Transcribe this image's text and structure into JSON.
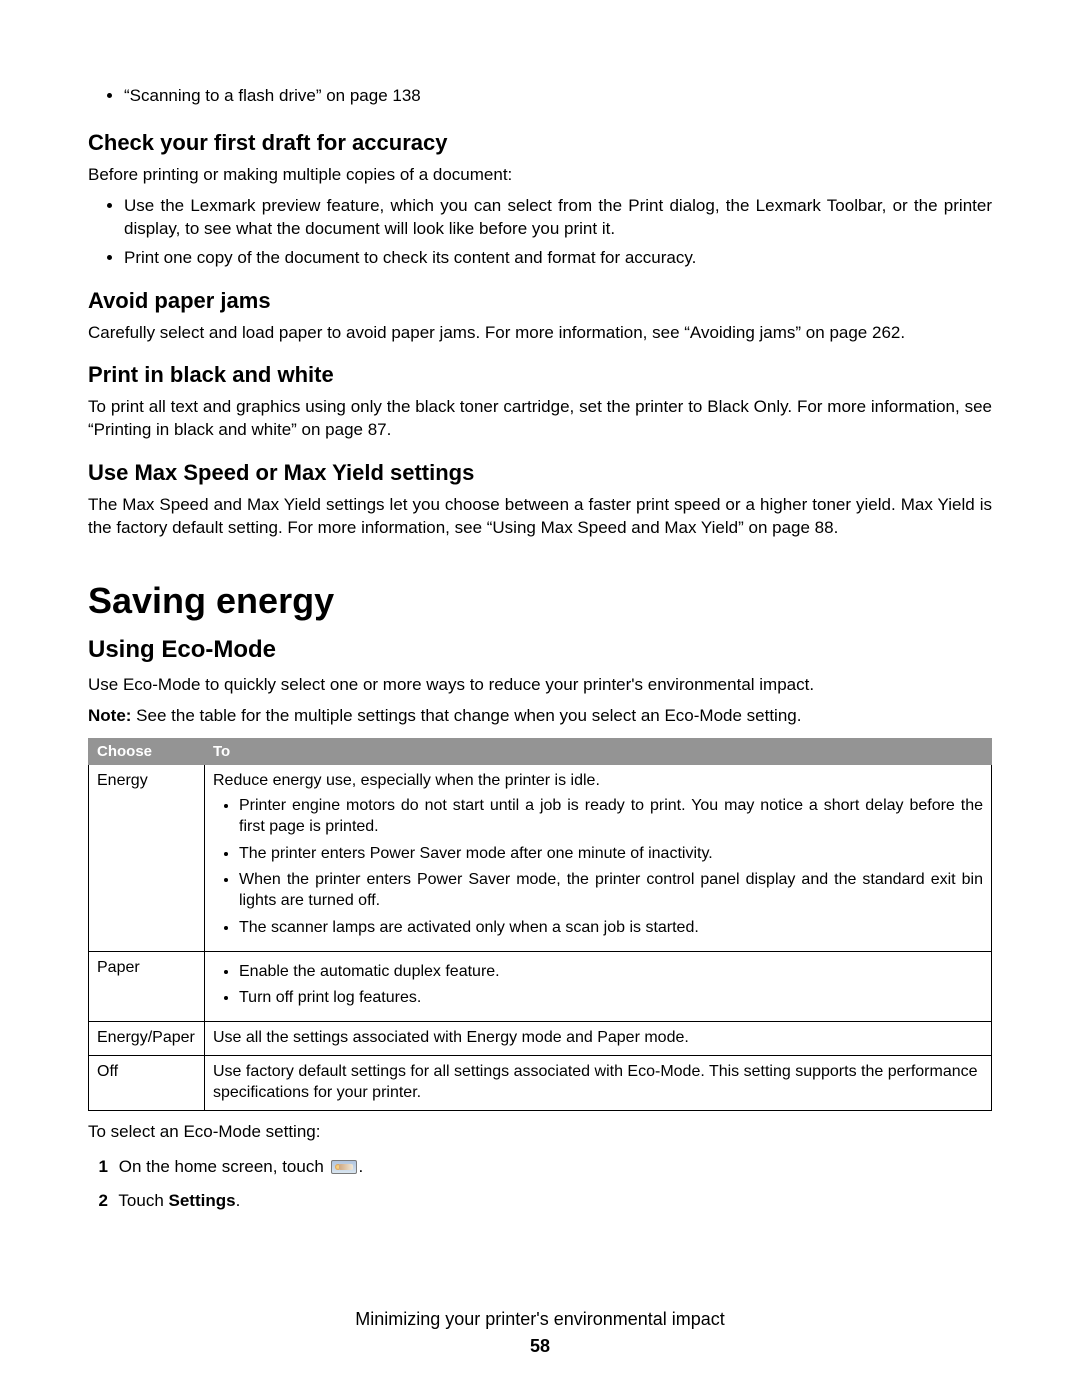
{
  "refs": {
    "scan_flash": "“Scanning to a flash drive” on page 138"
  },
  "s1_head": "Check your first draft for accuracy",
  "s1_lead": "Before printing or making multiple copies of a document:",
  "s1_items": [
    "Use the Lexmark preview feature, which you can select from the Print dialog, the Lexmark Toolbar, or the printer display, to see what the document will look like before you print it.",
    "Print one copy of the document to check its content and format for accuracy."
  ],
  "s2_head": "Avoid paper jams",
  "s2_body": "Carefully select and load paper to avoid paper jams. For more information, see “Avoiding jams” on page 262.",
  "s3_head": "Print in black and white",
  "s3_body": "To print all text and graphics using only the black toner cartridge, set the printer to Black Only. For more information, see “Printing in black and white” on page 87.",
  "s4_head": "Use Max Speed or Max Yield settings",
  "s4_body": "The Max Speed and Max Yield settings let you choose between a faster print speed or a higher toner yield. Max Yield is the factory default setting. For more information, see “Using Max Speed and Max Yield” on page 88.",
  "major_head": "Saving energy",
  "eco_head": "Using Eco-Mode",
  "eco_intro": "Use Eco-Mode to quickly select one or more ways to reduce your printer's environmental impact.",
  "eco_note_label": "Note:",
  "eco_note": " See the table for the multiple settings that change when you select an Eco-Mode setting.",
  "table": {
    "header": {
      "choose": "Choose",
      "to": "To"
    },
    "header_bg": "#949494",
    "header_text_color": "#ffffff",
    "border_color": "#000000",
    "rows": [
      {
        "choose": "Energy",
        "intro": "Reduce energy use, especially when the printer is idle.",
        "items": [
          "Printer engine motors do not start until a job is ready to print. You may notice a short delay before the first page is printed.",
          "The printer enters Power Saver mode after one minute of inactivity.",
          "When the printer enters Power Saver mode, the printer control panel display and the standard exit bin lights are turned off.",
          "The scanner lamps are activated only when a scan job is started."
        ]
      },
      {
        "choose": "Paper",
        "items": [
          "Enable the automatic duplex feature.",
          "Turn off print log features."
        ]
      },
      {
        "choose": "Energy/Paper",
        "desc": "Use all the settings associated with Energy mode and Paper mode."
      },
      {
        "choose": "Off",
        "desc": "Use factory default settings for all settings associated with Eco-Mode. This setting supports the performance specifications for your printer."
      }
    ]
  },
  "select_lead": "To select an Eco-Mode setting:",
  "steps": [
    {
      "num": "1",
      "prefix": "On the home screen, touch ",
      "icon": true,
      "suffix": "."
    },
    {
      "num": "2",
      "prefix": "Touch ",
      "bold": "Settings",
      "suffix": "."
    }
  ],
  "footer_title": "Minimizing your printer's environmental impact",
  "footer_page": "58",
  "fonts": {
    "body_size": 17,
    "h2_size": 22,
    "h1_size": 36
  },
  "colors": {
    "bg": "#ffffff",
    "text": "#000000",
    "table_header_bg": "#949494"
  }
}
